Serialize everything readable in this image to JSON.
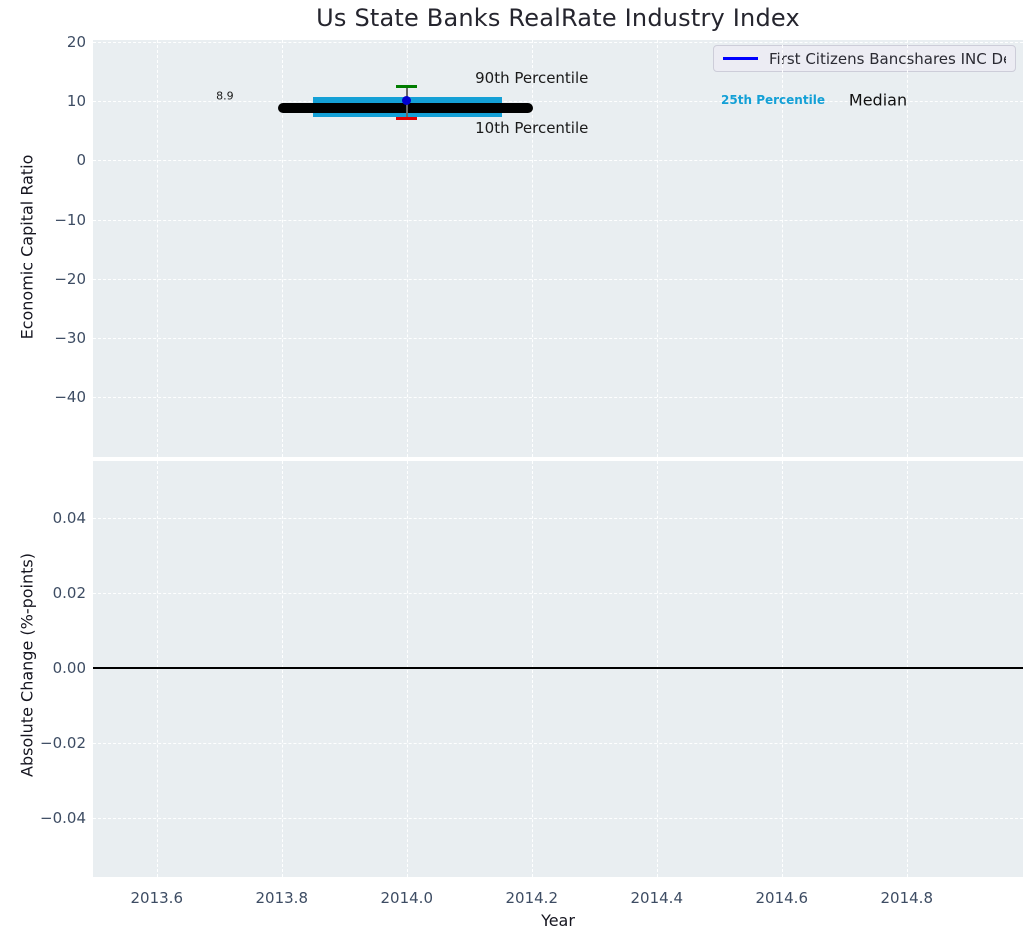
{
  "title": "Us State Banks RealRate Industry Index",
  "colors": {
    "axes_background": "#e9eef1",
    "gridline": "#ffffff",
    "tick_label": "#3d4c63",
    "median": "#000000",
    "iqr_band": "#14a0d6",
    "percentile_90_cap": "#007d00",
    "percentile_10_cap": "#e00000",
    "errorbar_stem": "#666666",
    "company_marker": "#0000d0",
    "legend_line": "#0000ff",
    "zero_line": "#000000"
  },
  "legend": {
    "label": "First Citizens Bancshares INC De",
    "line_color": "#0000ff"
  },
  "chart_data": [
    {
      "type": "line",
      "panel": "top",
      "title": "Us State Banks RealRate Industry Index",
      "ylabel": "Economic Capital Ratio",
      "xlim": [
        2013.498,
        2014.986
      ],
      "ylim": [
        -50.2,
        20.4
      ],
      "grid": true,
      "legend_position": "upper right",
      "yticks": [
        {
          "value": 20,
          "label": "20"
        },
        {
          "value": 10,
          "label": "10"
        },
        {
          "value": 0,
          "label": "0"
        },
        {
          "value": -10,
          "label": "−10"
        },
        {
          "value": -20,
          "label": "−20"
        },
        {
          "value": -30,
          "label": "−30"
        },
        {
          "value": -40,
          "label": "−40"
        }
      ],
      "series": [
        {
          "id": "iqr-band",
          "name": "25th-75th Percentile Band",
          "type": "band",
          "x": [
            2013.85,
            2014.152
          ],
          "y_low": 7.4,
          "y_high": 10.8,
          "color": "#14a0d6"
        },
        {
          "id": "median-line",
          "name": "Median",
          "type": "line",
          "x": [
            2013.794,
            2014.202
          ],
          "y": 8.9,
          "color": "#000000"
        },
        {
          "id": "company-point",
          "name": "First Citizens Bancshares INC De",
          "type": "scatter-errorbar",
          "x": 2014.0,
          "y": 10.2,
          "y_90th": 12.5,
          "y_10th": 7.1,
          "marker_color": "#0000d0",
          "cap_high_color": "#007d00",
          "cap_low_color": "#e00000",
          "stem_color": "#666666"
        }
      ],
      "annotations": [
        {
          "id": "median-value-label",
          "text": "8.9",
          "x": 2013.709,
          "y": 10.9,
          "color": "#1a1a1a",
          "size": 11,
          "weight": "normal"
        },
        {
          "id": "label-90th-percentile",
          "text": "90th Percentile",
          "x": 2014.2,
          "y": 14.0,
          "color": "#1a1a1a",
          "size": 15,
          "weight": "normal"
        },
        {
          "id": "label-10th-percentile",
          "text": "10th Percentile",
          "x": 2014.2,
          "y": 5.5,
          "color": "#1a1a1a",
          "size": 15,
          "weight": "normal"
        },
        {
          "id": "label-25th-percentile",
          "text": "25th Percentile",
          "x": 2014.586,
          "y": 10.3,
          "color": "#14a0d6",
          "size": 12,
          "weight": "bold"
        },
        {
          "id": "label-median",
          "text": "Median",
          "x": 2014.754,
          "y": 10.3,
          "color": "#111111",
          "size": 16,
          "weight": "normal"
        }
      ]
    },
    {
      "type": "line",
      "panel": "bottom",
      "ylabel": "Absolute Change (%-points)",
      "xlabel": "Year",
      "xlim": [
        2013.498,
        2014.986
      ],
      "ylim": [
        -0.0556,
        0.0553
      ],
      "grid": true,
      "zero_line": {
        "y": 0.0,
        "color": "#000000"
      },
      "yticks": [
        {
          "value": 0.04,
          "label": "0.04"
        },
        {
          "value": 0.02,
          "label": "0.02"
        },
        {
          "value": 0.0,
          "label": "0.00"
        },
        {
          "value": -0.02,
          "label": "−0.02"
        },
        {
          "value": -0.04,
          "label": "−0.04"
        }
      ],
      "xticks": [
        {
          "value": 2013.6,
          "label": "2013.6"
        },
        {
          "value": 2013.8,
          "label": "2013.8"
        },
        {
          "value": 2014.0,
          "label": "2014.0"
        },
        {
          "value": 2014.2,
          "label": "2014.2"
        },
        {
          "value": 2014.4,
          "label": "2014.4"
        },
        {
          "value": 2014.6,
          "label": "2014.6"
        },
        {
          "value": 2014.8,
          "label": "2014.8"
        }
      ]
    }
  ]
}
